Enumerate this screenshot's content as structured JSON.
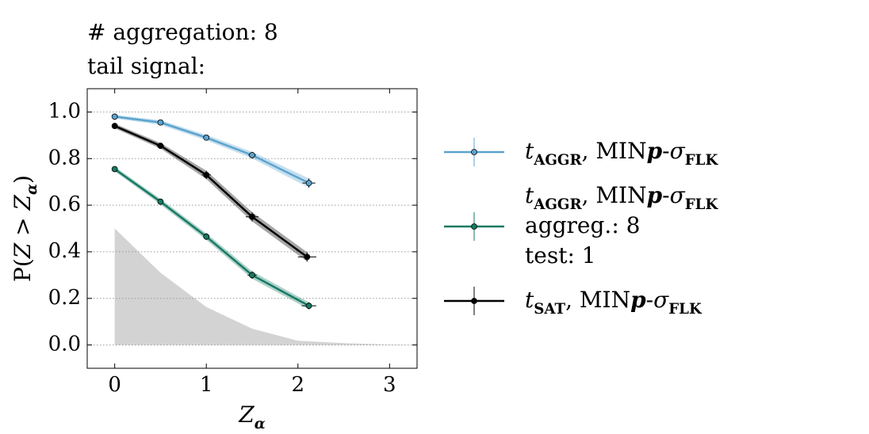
{
  "chart_data": {
    "type": "line",
    "title_lines": [
      [
        {
          "text": "# aggregation: 8",
          "style": ""
        }
      ],
      [
        {
          "text": "tail signal:",
          "style": ""
        }
      ]
    ],
    "xlabel": [
      {
        "text": "Z",
        "style": "i"
      },
      {
        "text": "α",
        "style": "isub"
      }
    ],
    "ylabel": [
      {
        "text": "P(",
        "style": ""
      },
      {
        "text": "Z",
        "style": "i"
      },
      {
        "text": " > ",
        "style": ""
      },
      {
        "text": "Z",
        "style": "i"
      },
      {
        "text": "α",
        "style": "isub"
      },
      {
        "text": ")",
        "style": ""
      }
    ],
    "xlim": [
      -0.3,
      3.3
    ],
    "ylim": [
      -0.1,
      1.1
    ],
    "xticks": [
      0,
      1,
      2,
      3
    ],
    "yticks": [
      {
        "value": 0,
        "label": "0.0"
      },
      {
        "value": 0.2,
        "label": "0.2"
      },
      {
        "value": 0.4,
        "label": "0.4"
      },
      {
        "value": 0.6,
        "label": "0.6"
      },
      {
        "value": 0.8,
        "label": "0.8"
      },
      {
        "value": 1,
        "label": "1.0"
      }
    ],
    "grid": true,
    "shade": {
      "color": "#d3d3d3",
      "x": [
        0,
        0.5,
        1,
        1.5,
        2,
        2.5,
        3,
        3.3
      ],
      "values": [
        0.5,
        0.31,
        0.163,
        0.07,
        0.018,
        0.008,
        0.002,
        0
      ]
    },
    "series": [
      {
        "name": [
          [
            {
              "text": "t",
              "style": "i"
            },
            {
              "text": "AGGR",
              "style": "sub"
            },
            {
              "text": ", MIN",
              "style": ""
            },
            {
              "text": "p",
              "style": "bi"
            },
            {
              "text": "-",
              "style": ""
            },
            {
              "text": "σ",
              "style": "i"
            },
            {
              "text": "FLK",
              "style": "sub"
            }
          ]
        ],
        "color": "#5ba3cf",
        "x": [
          0,
          0.5,
          1,
          1.5,
          2.12
        ],
        "values": [
          0.98,
          0.955,
          0.89,
          0.815,
          0.695
        ],
        "yerr": [
          0.008,
          0.01,
          0.012,
          0.014,
          0.02
        ],
        "xerr": [
          0.01,
          0.02,
          0.03,
          0.04,
          0.07
        ]
      },
      {
        "name": [
          [
            {
              "text": "t",
              "style": "i"
            },
            {
              "text": "AGGR",
              "style": "sub"
            },
            {
              "text": ", MIN",
              "style": ""
            },
            {
              "text": "p",
              "style": "bi"
            },
            {
              "text": "-",
              "style": ""
            },
            {
              "text": "σ",
              "style": "i"
            },
            {
              "text": "FLK",
              "style": "sub"
            }
          ],
          [
            {
              "text": "aggreg.: 8",
              "style": ""
            }
          ],
          [
            {
              "text": "test: 1",
              "style": ""
            }
          ]
        ],
        "color": "#167a63",
        "x": [
          0,
          0.5,
          1,
          1.5,
          2.12
        ],
        "values": [
          0.755,
          0.615,
          0.465,
          0.3,
          0.168
        ],
        "yerr": [
          0.01,
          0.012,
          0.014,
          0.016,
          0.015
        ],
        "xerr": [
          0.01,
          0.02,
          0.03,
          0.05,
          0.08
        ]
      },
      {
        "name": [
          [
            {
              "text": "t",
              "style": "i"
            },
            {
              "text": "SAT",
              "style": "sub"
            },
            {
              "text": ", MIN",
              "style": ""
            },
            {
              "text": "p",
              "style": "bi"
            },
            {
              "text": "-",
              "style": ""
            },
            {
              "text": "σ",
              "style": "i"
            },
            {
              "text": "FLK",
              "style": "sub"
            }
          ]
        ],
        "color": "#000000",
        "x": [
          0,
          0.5,
          1,
          1.5,
          2.1
        ],
        "values": [
          0.94,
          0.855,
          0.73,
          0.55,
          0.378
        ],
        "yerr": [
          0.01,
          0.012,
          0.018,
          0.02,
          0.02
        ],
        "xerr": [
          0.02,
          0.04,
          0.05,
          0.07,
          0.1
        ]
      }
    ]
  }
}
